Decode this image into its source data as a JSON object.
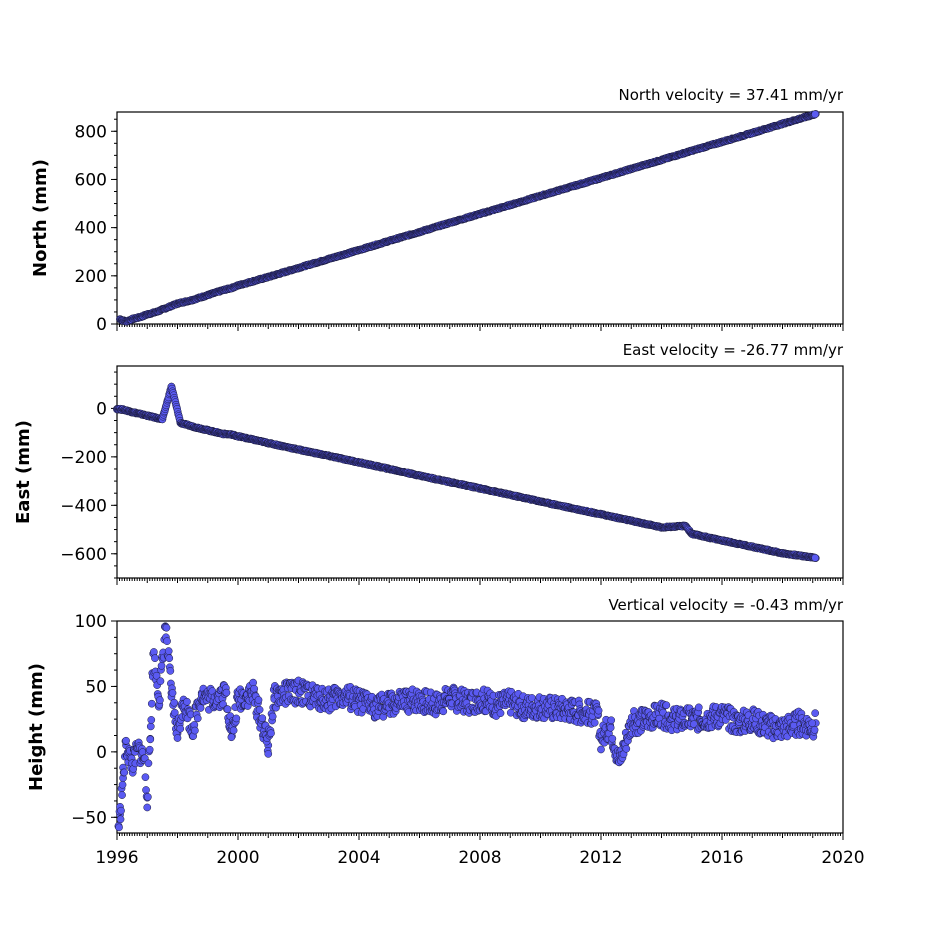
{
  "chart_data": [
    {
      "type": "scatter",
      "ylabel": "North (mm)",
      "annotation": "North velocity = 37.41 mm/yr",
      "xlim": [
        1996,
        2020
      ],
      "ylim": [
        0,
        880
      ],
      "yticks": [
        0,
        200,
        400,
        600,
        800
      ],
      "ytick_labels": [
        "0",
        "200",
        "400",
        "600",
        "800"
      ],
      "point_color": "#5a5af2",
      "series": [
        {
          "x": [
            1996.1,
            1996.3,
            1996.5,
            1996.8,
            1997.0,
            1997.3,
            1997.6,
            1998.0,
            1998.5,
            1999.0,
            1999.5,
            1999.8,
            2000.0,
            2001.0,
            2002.0,
            2003.0,
            2004.0,
            2005.0,
            2006.0,
            2007.0,
            2008.0,
            2009.0,
            2010.0,
            2011.0,
            2012.0,
            2013.0,
            2014.0,
            2015.0,
            2016.0,
            2017.0,
            2018.0,
            2019.0,
            2019.1
          ],
          "y": [
            20,
            10,
            20,
            30,
            40,
            50,
            65,
            85,
            100,
            120,
            140,
            150,
            160,
            195,
            233,
            270,
            307,
            345,
            382,
            420,
            457,
            494,
            532,
            569,
            606,
            644,
            681,
            719,
            756,
            793,
            831,
            868,
            872
          ]
        }
      ]
    },
    {
      "type": "scatter",
      "ylabel": "East (mm)",
      "annotation": "East velocity = -26.77 mm/yr",
      "xlim": [
        1996,
        2020
      ],
      "ylim": [
        -700,
        175
      ],
      "yticks": [
        -600,
        -400,
        -200,
        0
      ],
      "ytick_labels": [
        "−600",
        "−400",
        "−200",
        "0"
      ],
      "point_color": "#5a5af2",
      "series": [
        {
          "x": [
            1996.0,
            1996.2,
            1996.5,
            1997.0,
            1997.5,
            1997.8,
            1998.1,
            1998.5,
            1999.0,
            1999.5,
            1999.8,
            2000.0,
            2001.0,
            2002.0,
            2003.0,
            2004.0,
            2005.0,
            2006.0,
            2007.0,
            2008.0,
            2009.0,
            2010.0,
            2011.0,
            2012.0,
            2013.0,
            2014.0,
            2014.8,
            2015.0,
            2016.0,
            2017.0,
            2018.0,
            2019.0,
            2019.1
          ],
          "y": [
            -2,
            -5,
            -15,
            -30,
            -45,
            90,
            -60,
            -75,
            -90,
            -105,
            -108,
            -115,
            -143,
            -170,
            -196,
            -223,
            -250,
            -277,
            -304,
            -330,
            -357,
            -384,
            -411,
            -437,
            -464,
            -491,
            -485,
            -518,
            -545,
            -571,
            -598,
            -615,
            -618
          ]
        }
      ]
    },
    {
      "type": "scatter",
      "ylabel": "Height (mm)",
      "annotation": "Vertical velocity = -0.43 mm/yr",
      "xlim": [
        1996,
        2020
      ],
      "ylim": [
        -62,
        100
      ],
      "yticks": [
        -50,
        0,
        50,
        100
      ],
      "ytick_labels": [
        "−50",
        "0",
        "50",
        "100"
      ],
      "xticks": [
        1996,
        2000,
        2004,
        2008,
        2012,
        2016,
        2020
      ],
      "xtick_labels": [
        "1996",
        "2000",
        "2004",
        "2008",
        "2012",
        "2016",
        "2020"
      ],
      "point_color": "#5a5af2",
      "series": [
        {
          "x": [
            1996.05,
            1996.1,
            1996.2,
            1996.3,
            1996.5,
            1996.7,
            1996.9,
            1997.0,
            1997.1,
            1997.2,
            1997.4,
            1997.6,
            1997.8,
            1998.0,
            1998.2,
            1998.5,
            1998.8,
            1999.0,
            1999.3,
            1999.6,
            1999.8,
            2000.0,
            2000.5,
            2001.0,
            2001.2,
            2001.5,
            2002.0,
            2002.5,
            2003.0,
            2003.5,
            2004.0,
            2004.5,
            2005.0,
            2005.5,
            2006.0,
            2006.5,
            2007.0,
            2007.5,
            2008.0,
            2008.5,
            2009.0,
            2009.5,
            2010.0,
            2010.5,
            2011.0,
            2011.5,
            2011.9,
            2012.0,
            2012.3,
            2012.6,
            2013.0,
            2013.5,
            2014.0,
            2014.5,
            2015.0,
            2015.5,
            2016.0,
            2016.5,
            2017.0,
            2017.5,
            2018.0,
            2018.5,
            2019.0,
            2019.1
          ],
          "y": [
            -57,
            -48,
            -20,
            5,
            -10,
            2,
            -5,
            -35,
            10,
            75,
            40,
            96,
            45,
            14,
            40,
            18,
            45,
            40,
            42,
            45,
            12,
            40,
            45,
            5,
            42,
            44,
            46,
            42,
            40,
            43,
            38,
            35,
            36,
            38,
            40,
            36,
            42,
            38,
            40,
            36,
            38,
            34,
            35,
            33,
            32,
            30,
            28,
            10,
            20,
            -8,
            22,
            25,
            28,
            24,
            25,
            26,
            28,
            22,
            24,
            20,
            18,
            22,
            20,
            22
          ]
        }
      ]
    }
  ]
}
